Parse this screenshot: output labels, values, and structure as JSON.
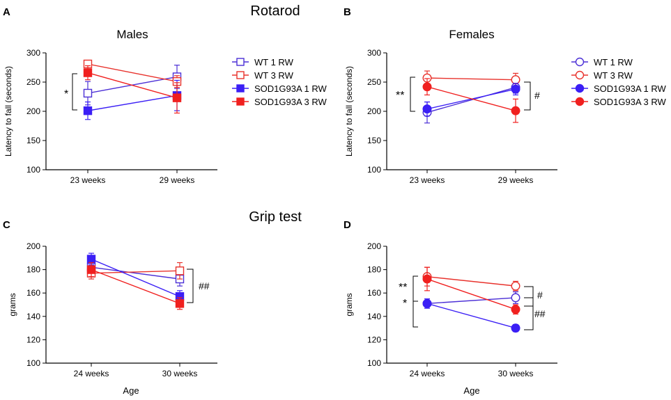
{
  "figure": {
    "section_titles": [
      "Rotarod",
      "Grip test"
    ],
    "colors": {
      "wt1": "#4b2fd6",
      "wt3": "#e8322c",
      "sod1": "#3b1ff5",
      "sod3": "#f0201f",
      "axis": "#000000"
    }
  },
  "legends": {
    "top_left": [
      "WT 1 RW",
      "WT 3 RW",
      "SOD1G93A 1 RW",
      "SOD1G93A 3 RW"
    ],
    "top_right": [
      "WT 1 RW",
      "WT 3 RW",
      "SOD1G93A 1 RW",
      "SOD1G93A 3 RW"
    ]
  },
  "chart_data": [
    {
      "panel": "A",
      "type": "line",
      "title": "Males",
      "xlabel": "",
      "ylabel": "Latency to fall (seconds)",
      "categories": [
        "23 weeks",
        "29 weeks"
      ],
      "ylim": [
        100,
        300
      ],
      "yticks": [
        100,
        150,
        200,
        250,
        300
      ],
      "marker": "square",
      "series": [
        {
          "name": "WT 1 RW",
          "values": [
            231,
            259
          ],
          "err": [
            20,
            20
          ],
          "filled": false
        },
        {
          "name": "WT 3 RW",
          "values": [
            281,
            251
          ],
          "err": [
            6,
            10
          ],
          "filled": false
        },
        {
          "name": "SOD1G93A 1 RW",
          "values": [
            201,
            227
          ],
          "err": [
            15,
            26
          ],
          "filled": true
        },
        {
          "name": "SOD1G93A 3 RW",
          "values": [
            266,
            223
          ],
          "err": [
            12,
            26
          ],
          "filled": true
        }
      ],
      "annotations": [
        "*"
      ]
    },
    {
      "panel": "B",
      "type": "line",
      "title": "Females",
      "xlabel": "",
      "ylabel": "Latency to fall (seconds)",
      "categories": [
        "23 weeks",
        "29 weeks"
      ],
      "ylim": [
        100,
        300
      ],
      "yticks": [
        100,
        150,
        200,
        250,
        300
      ],
      "marker": "circle",
      "series": [
        {
          "name": "WT 1 RW",
          "values": [
            198,
            241
          ],
          "err": [
            18,
            10
          ],
          "filled": false
        },
        {
          "name": "WT 3 RW",
          "values": [
            257,
            254
          ],
          "err": [
            12,
            11
          ],
          "filled": false
        },
        {
          "name": "SOD1G93A 1 RW",
          "values": [
            204,
            238
          ],
          "err": [
            12,
            10
          ],
          "filled": true
        },
        {
          "name": "SOD1G93A 3 RW",
          "values": [
            242,
            201
          ],
          "err": [
            14,
            20
          ],
          "filled": true
        }
      ],
      "annotations": [
        "**",
        "#"
      ]
    },
    {
      "panel": "C",
      "type": "line",
      "title": "",
      "xlabel": "Age",
      "ylabel": "grams",
      "categories": [
        "24 weeks",
        "30 weeks"
      ],
      "ylim": [
        100,
        200
      ],
      "yticks": [
        100,
        120,
        140,
        160,
        180,
        200
      ],
      "marker": "square",
      "series": [
        {
          "name": "WT 1 RW",
          "values": [
            182,
            172
          ],
          "err": [
            6,
            6
          ],
          "filled": false
        },
        {
          "name": "WT 3 RW",
          "values": [
            177,
            179
          ],
          "err": [
            5,
            7
          ],
          "filled": false
        },
        {
          "name": "SOD1G93A 1 RW",
          "values": [
            189,
            157
          ],
          "err": [
            5,
            5
          ],
          "filled": true
        },
        {
          "name": "SOD1G93A 3 RW",
          "values": [
            180,
            151
          ],
          "err": [
            6,
            5
          ],
          "filled": true
        }
      ],
      "annotations": [
        "##"
      ]
    },
    {
      "panel": "D",
      "type": "line",
      "title": "",
      "xlabel": "Age",
      "ylabel": "grams",
      "categories": [
        "24 weeks",
        "30 weeks"
      ],
      "ylim": [
        100,
        200
      ],
      "yticks": [
        100,
        120,
        140,
        160,
        180,
        200
      ],
      "marker": "circle",
      "series": [
        {
          "name": "WT 1 RW",
          "values": [
            151,
            156
          ],
          "err": [
            4,
            5
          ],
          "filled": false
        },
        {
          "name": "WT 3 RW",
          "values": [
            174,
            166
          ],
          "err": [
            8,
            4
          ],
          "filled": false
        },
        {
          "name": "SOD1G93A 1 RW",
          "values": [
            151,
            130
          ],
          "err": [
            4,
            3
          ],
          "filled": true
        },
        {
          "name": "SOD1G93A 3 RW",
          "values": [
            172,
            146
          ],
          "err": [
            10,
            4
          ],
          "filled": true
        }
      ],
      "annotations": [
        "**",
        "*",
        "#",
        "##"
      ]
    }
  ]
}
